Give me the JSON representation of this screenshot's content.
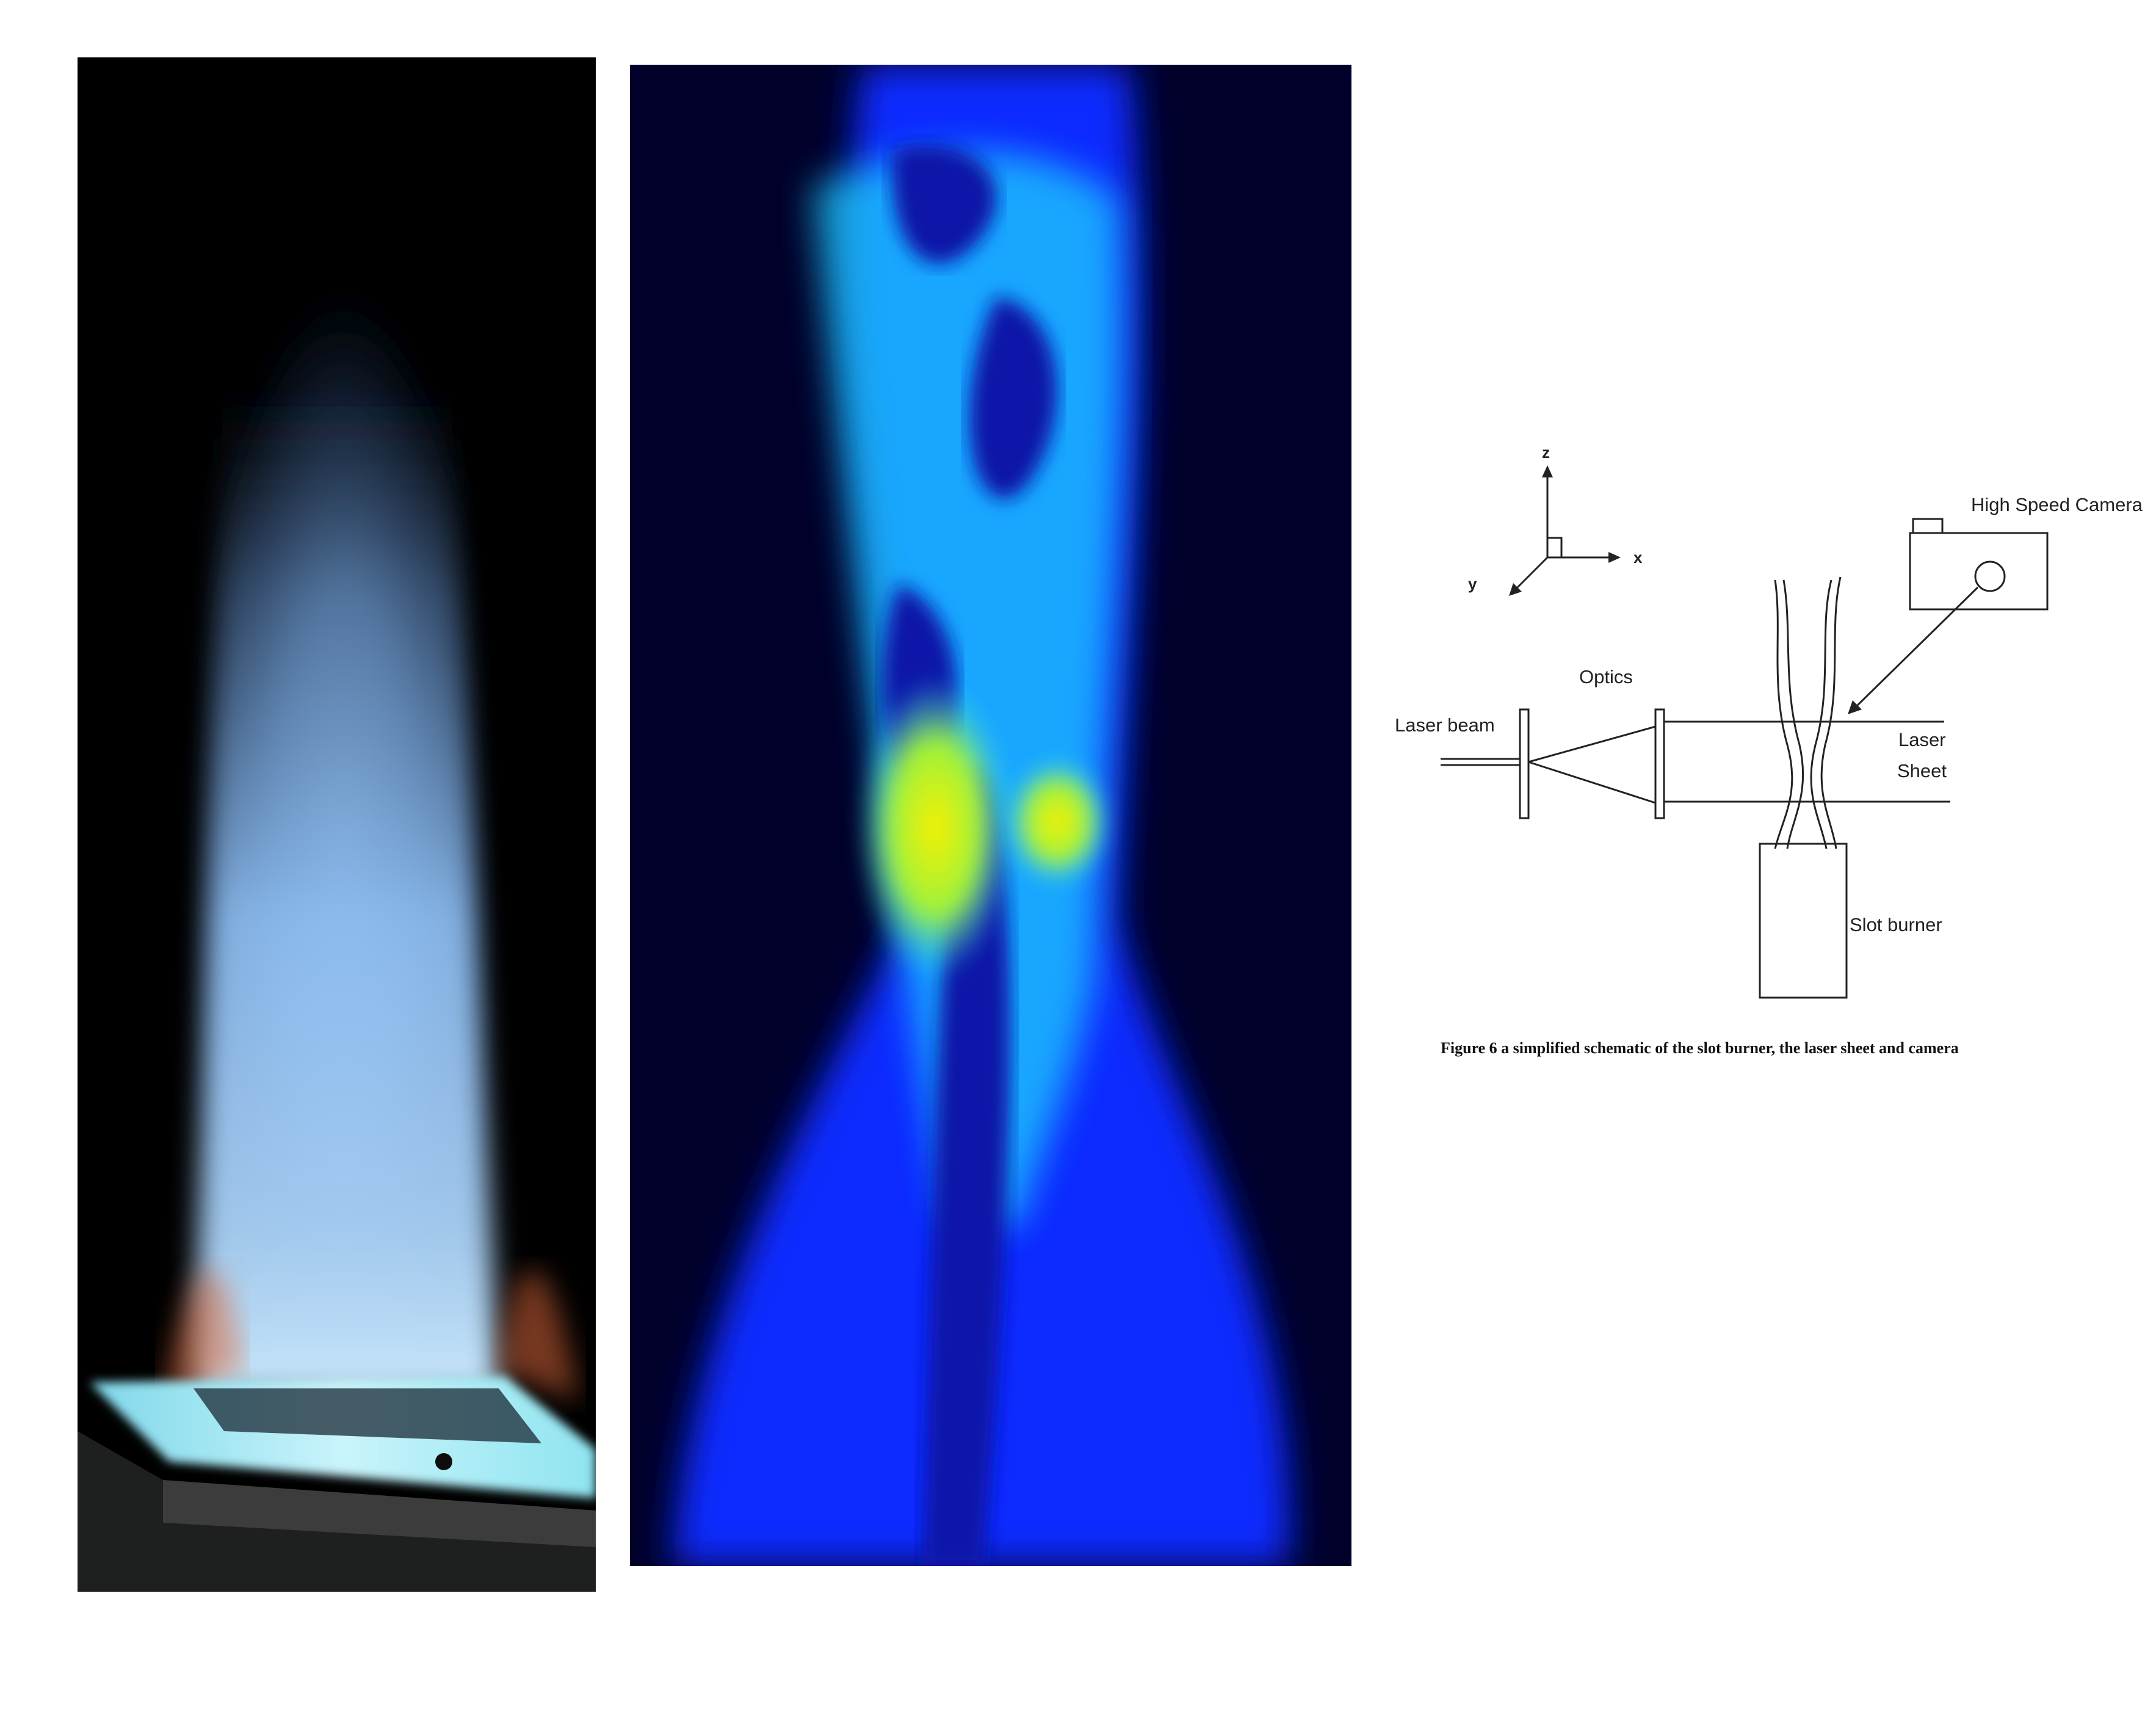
{
  "figure": {
    "caption": "Figure 6 a simplified schematic of the slot burner, the laser sheet and camera"
  },
  "photo": {
    "colors": {
      "background": "#000000",
      "flame": "#7fb6ee",
      "flame_edge": "#d8663a",
      "burner": "#7fe6f2"
    }
  },
  "plif": {
    "colors": {
      "background": "#00002a",
      "low": "#0b2cff",
      "mid": "#1fd0ff",
      "high": "#f7f000"
    }
  },
  "schematic": {
    "axes": {
      "z": "z",
      "x": "x",
      "y": "y"
    },
    "labels": {
      "camera": "High Speed Camera",
      "optics": "Optics",
      "laser_beam": "Laser beam",
      "laser_line1": "Laser",
      "laser_line2": "Sheet",
      "burner": "Slot burner"
    }
  }
}
